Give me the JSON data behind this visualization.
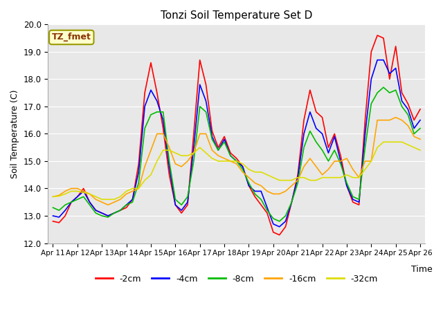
{
  "title": "Tonzi Soil Temperature Set D",
  "xlabel": "Time",
  "ylabel": "Soil Temperature (C)",
  "ylim": [
    12.0,
    20.0
  ],
  "yticks": [
    12.0,
    13.0,
    14.0,
    15.0,
    16.0,
    17.0,
    18.0,
    19.0,
    20.0
  ],
  "xtick_labels": [
    "Apr 11",
    "Apr 12",
    "Apr 13",
    "Apr 14",
    "Apr 15",
    "Apr 16",
    "Apr 17",
    "Apr 18",
    "Apr 19",
    "Apr 20",
    "Apr 21",
    "Apr 22",
    "Apr 23",
    "Apr 24",
    "Apr 25",
    "Apr 26"
  ],
  "legend_label": "TZ_fmet",
  "lines": {
    "-2cm": {
      "color": "#FF0000",
      "lw": 1.2
    },
    "-4cm": {
      "color": "#0000FF",
      "lw": 1.2
    },
    "-8cm": {
      "color": "#00BB00",
      "lw": 1.2
    },
    "-16cm": {
      "color": "#FFA500",
      "lw": 1.2
    },
    "-32cm": {
      "color": "#DDDD00",
      "lw": 1.2
    }
  },
  "data": {
    "x_days": [
      0,
      0.25,
      0.5,
      0.75,
      1,
      1.25,
      1.5,
      1.75,
      2,
      2.25,
      2.5,
      2.75,
      3,
      3.25,
      3.5,
      3.75,
      4,
      4.25,
      4.5,
      4.75,
      5,
      5.25,
      5.5,
      5.75,
      6,
      6.25,
      6.5,
      6.75,
      7,
      7.25,
      7.5,
      7.75,
      8,
      8.25,
      8.5,
      8.75,
      9,
      9.25,
      9.5,
      9.75,
      10,
      10.25,
      10.5,
      10.75,
      11,
      11.25,
      11.5,
      11.75,
      12,
      12.25,
      12.5,
      12.75,
      13,
      13.25,
      13.5,
      13.75,
      14,
      14.25,
      14.5,
      14.75,
      15
    ],
    "-2cm": [
      12.8,
      12.75,
      13.0,
      13.5,
      13.7,
      14.0,
      13.5,
      13.2,
      13.1,
      13.0,
      13.1,
      13.2,
      13.3,
      13.6,
      14.9,
      17.5,
      18.6,
      17.5,
      16.2,
      14.5,
      13.4,
      13.1,
      13.4,
      16.0,
      18.7,
      17.8,
      16.1,
      15.5,
      15.9,
      15.3,
      15.1,
      14.8,
      14.1,
      13.7,
      13.4,
      13.1,
      12.4,
      12.3,
      12.6,
      13.5,
      14.5,
      16.5,
      17.6,
      16.8,
      16.6,
      15.5,
      16.0,
      15.2,
      14.1,
      13.5,
      13.4,
      16.5,
      19.0,
      19.6,
      19.5,
      18.0,
      19.2,
      17.5,
      17.1,
      16.5,
      16.9
    ],
    "-4cm": [
      13.0,
      12.95,
      13.2,
      13.5,
      13.7,
      13.9,
      13.5,
      13.2,
      13.1,
      13.0,
      13.1,
      13.2,
      13.4,
      13.6,
      14.6,
      17.0,
      17.6,
      17.2,
      16.5,
      14.8,
      13.4,
      13.2,
      13.5,
      15.5,
      17.8,
      17.2,
      15.9,
      15.4,
      15.8,
      15.2,
      15.0,
      14.8,
      14.1,
      13.9,
      13.9,
      13.3,
      12.7,
      12.6,
      12.8,
      13.5,
      14.4,
      16.0,
      16.8,
      16.2,
      16.0,
      15.3,
      15.9,
      15.0,
      14.1,
      13.6,
      13.5,
      16.0,
      18.0,
      18.7,
      18.7,
      18.2,
      18.4,
      17.2,
      16.9,
      16.2,
      16.5
    ],
    "-8cm": [
      13.3,
      13.2,
      13.4,
      13.5,
      13.6,
      13.7,
      13.4,
      13.1,
      13.0,
      12.95,
      13.1,
      13.2,
      13.4,
      13.5,
      14.2,
      16.2,
      16.7,
      16.8,
      16.8,
      15.0,
      13.6,
      13.4,
      13.7,
      15.0,
      17.0,
      16.8,
      15.8,
      15.4,
      15.7,
      15.2,
      15.0,
      14.7,
      14.2,
      13.8,
      13.6,
      13.2,
      12.9,
      12.8,
      13.0,
      13.5,
      14.2,
      15.5,
      16.1,
      15.7,
      15.4,
      15.0,
      15.4,
      14.9,
      14.2,
      13.7,
      13.6,
      15.5,
      17.1,
      17.5,
      17.7,
      17.5,
      17.6,
      17.0,
      16.7,
      16.0,
      16.2
    ],
    "-16cm": [
      13.7,
      13.75,
      13.9,
      14.0,
      14.0,
      13.9,
      13.8,
      13.6,
      13.5,
      13.4,
      13.5,
      13.6,
      13.8,
      13.9,
      14.0,
      14.8,
      15.4,
      16.0,
      16.0,
      15.5,
      14.9,
      14.8,
      15.0,
      15.3,
      16.0,
      16.0,
      15.4,
      15.2,
      15.1,
      15.0,
      14.9,
      14.6,
      14.4,
      14.2,
      14.1,
      13.9,
      13.8,
      13.8,
      13.9,
      14.1,
      14.3,
      14.8,
      15.1,
      14.8,
      14.5,
      14.7,
      15.0,
      15.0,
      15.1,
      14.7,
      14.4,
      15.0,
      15.0,
      16.5,
      16.5,
      16.5,
      16.6,
      16.5,
      16.3,
      15.9,
      15.8
    ],
    "-32cm": [
      13.7,
      13.72,
      13.8,
      13.9,
      13.9,
      13.85,
      13.8,
      13.7,
      13.6,
      13.6,
      13.6,
      13.7,
      13.9,
      14.0,
      14.0,
      14.3,
      14.5,
      15.0,
      15.4,
      15.4,
      15.3,
      15.2,
      15.2,
      15.3,
      15.5,
      15.3,
      15.1,
      15.0,
      15.0,
      15.0,
      15.0,
      14.9,
      14.7,
      14.6,
      14.6,
      14.5,
      14.4,
      14.3,
      14.3,
      14.3,
      14.4,
      14.4,
      14.3,
      14.3,
      14.4,
      14.4,
      14.4,
      14.4,
      14.5,
      14.4,
      14.4,
      14.7,
      15.0,
      15.5,
      15.7,
      15.7,
      15.7,
      15.7,
      15.6,
      15.5,
      15.4
    ]
  }
}
